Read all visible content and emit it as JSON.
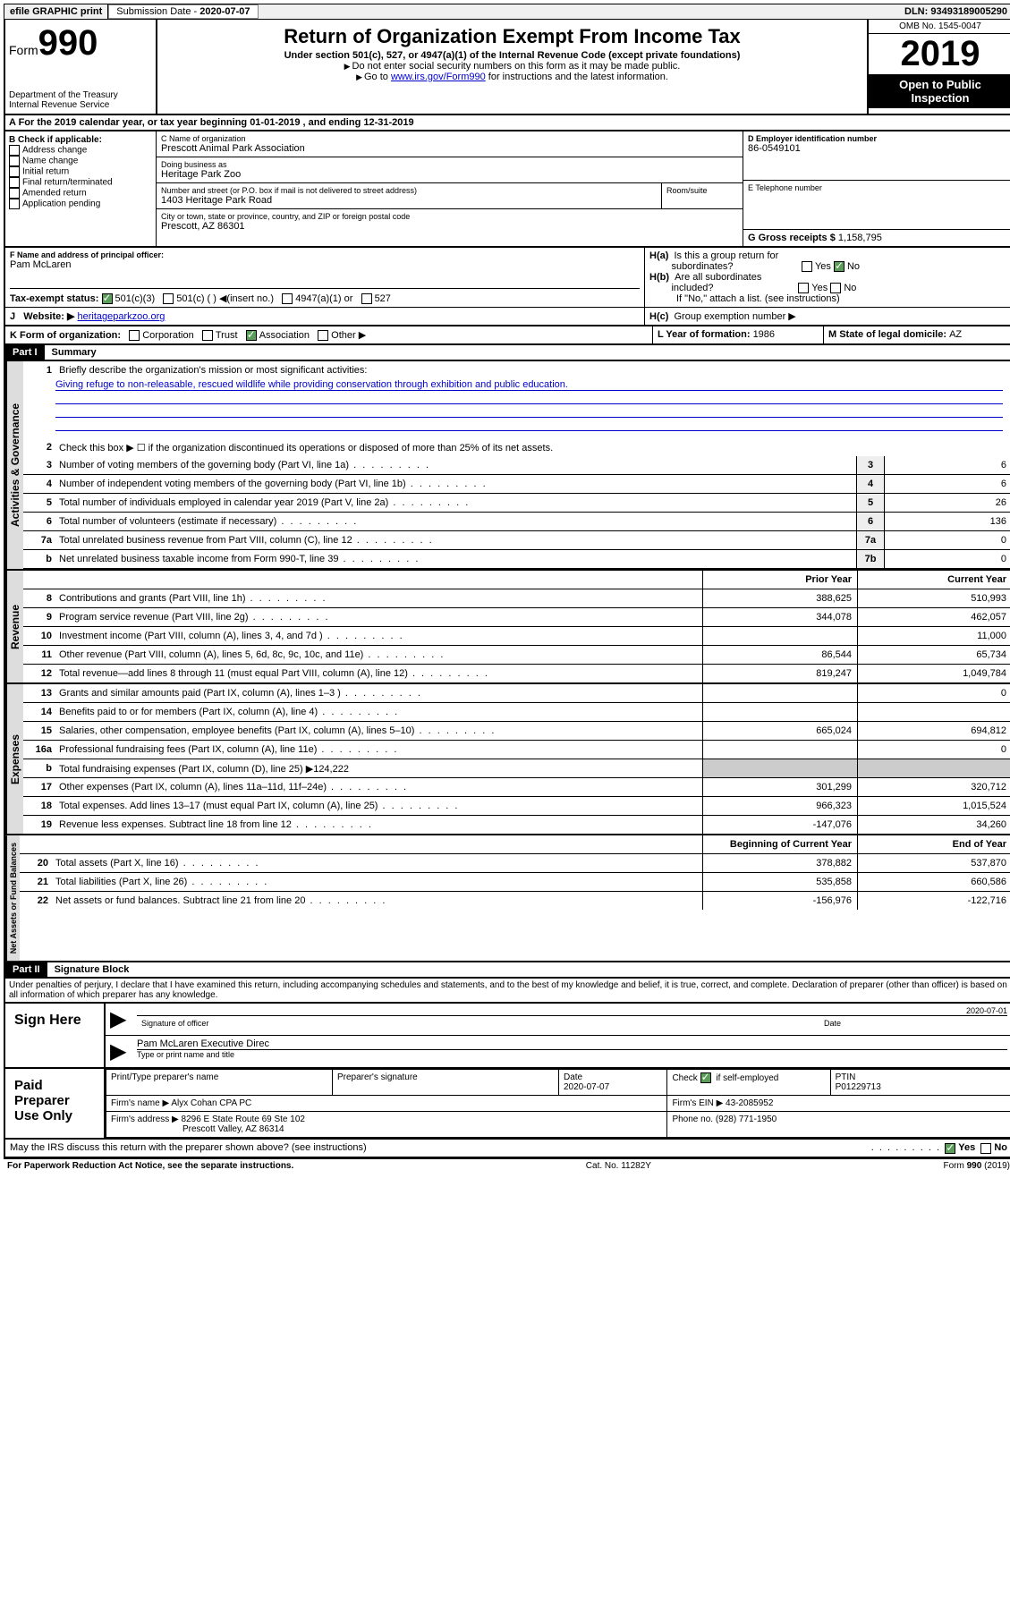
{
  "topbar": {
    "efile": "efile GRAPHIC print",
    "submission_label": "Submission Date - ",
    "submission_date": "2020-07-07",
    "dln_label": "DLN: ",
    "dln": "93493189005290"
  },
  "header": {
    "form_prefix": "Form",
    "form_num": "990",
    "dept": "Department of the Treasury\nInternal Revenue Service",
    "title": "Return of Organization Exempt From Income Tax",
    "subtitle": "Under section 501(c), 527, or 4947(a)(1) of the Internal Revenue Code (except private foundations)",
    "note1": "Do not enter social security numbers on this form as it may be made public.",
    "note2_pre": "Go to ",
    "note2_link": "www.irs.gov/Form990",
    "note2_post": " for instructions and the latest information.",
    "omb": "OMB No. 1545-0047",
    "year": "2019",
    "open": "Open to Public Inspection"
  },
  "section_a": "A   For the 2019 calendar year, or tax year beginning 01-01-2019    , and ending 12-31-2019",
  "b": {
    "label": "B Check if applicable:",
    "items": [
      "Address change",
      "Name change",
      "Initial return",
      "Final return/terminated",
      "Amended return",
      "Application pending"
    ]
  },
  "c": {
    "name_label": "C Name of organization",
    "name": "Prescott Animal Park Association",
    "dba_label": "Doing business as",
    "dba": "Heritage Park Zoo",
    "addr_label": "Number and street (or P.O. box if mail is not delivered to street address)",
    "room_label": "Room/suite",
    "addr": "1403 Heritage Park Road",
    "city_label": "City or town, state or province, country, and ZIP or foreign postal code",
    "city": "Prescott, AZ  86301"
  },
  "d": {
    "label": "D Employer identification number",
    "value": "86-0549101"
  },
  "e": {
    "label": "E Telephone number",
    "value": ""
  },
  "g": {
    "label": "G Gross receipts $ ",
    "value": "1,158,795"
  },
  "f": {
    "label": "F  Name and address of principal officer:",
    "value": "Pam McLaren"
  },
  "h": {
    "a_label": "H(a)  Is this a group return for subordinates?",
    "b_label": "H(b)  Are all subordinates included?",
    "b_note": "If \"No,\" attach a list. (see instructions)",
    "c_label": "H(c)  Group exemption number ▶",
    "yes": "Yes",
    "no": "No"
  },
  "i": {
    "label": "Tax-exempt status:",
    "opts": [
      "501(c)(3)",
      "501(c) (   ) ◀(insert no.)",
      "4947(a)(1) or",
      "527"
    ]
  },
  "j": {
    "label": "Website: ▶",
    "value": "heritageparkzoo.org"
  },
  "k": {
    "label": "K Form of organization:",
    "opts": [
      "Corporation",
      "Trust",
      "Association",
      "Other ▶"
    ]
  },
  "l": {
    "label": "L Year of formation: ",
    "value": "1986"
  },
  "m": {
    "label": "M State of legal domicile: ",
    "value": "AZ"
  },
  "part1": {
    "header": "Part I",
    "title": "Summary",
    "tab_gov": "Activities & Governance",
    "tab_rev": "Revenue",
    "tab_exp": "Expenses",
    "tab_net": "Net Assets or Fund Balances",
    "line1_label": "Briefly describe the organization's mission or most significant activities:",
    "line1_text": "Giving refuge to non-releasable, rescued wildlife while providing conservation through exhibition and public education.",
    "line2": "Check this box ▶ ☐  if the organization discontinued its operations or disposed of more than 25% of its net assets.",
    "lines_gov": [
      {
        "n": "3",
        "t": "Number of voting members of the governing body (Part VI, line 1a)",
        "box": "3",
        "v": "6"
      },
      {
        "n": "4",
        "t": "Number of independent voting members of the governing body (Part VI, line 1b)",
        "box": "4",
        "v": "6"
      },
      {
        "n": "5",
        "t": "Total number of individuals employed in calendar year 2019 (Part V, line 2a)",
        "box": "5",
        "v": "26"
      },
      {
        "n": "6",
        "t": "Total number of volunteers (estimate if necessary)",
        "box": "6",
        "v": "136"
      },
      {
        "n": "7a",
        "t": "Total unrelated business revenue from Part VIII, column (C), line 12",
        "box": "7a",
        "v": "0"
      },
      {
        "n": "b",
        "t": "Net unrelated business taxable income from Form 990-T, line 39",
        "box": "7b",
        "v": "0"
      }
    ],
    "col_prior": "Prior Year",
    "col_current": "Current Year",
    "lines_rev": [
      {
        "n": "8",
        "t": "Contributions and grants (Part VIII, line 1h)",
        "p": "388,625",
        "c": "510,993"
      },
      {
        "n": "9",
        "t": "Program service revenue (Part VIII, line 2g)",
        "p": "344,078",
        "c": "462,057"
      },
      {
        "n": "10",
        "t": "Investment income (Part VIII, column (A), lines 3, 4, and 7d )",
        "p": "",
        "c": "11,000"
      },
      {
        "n": "11",
        "t": "Other revenue (Part VIII, column (A), lines 5, 6d, 8c, 9c, 10c, and 11e)",
        "p": "86,544",
        "c": "65,734"
      },
      {
        "n": "12",
        "t": "Total revenue—add lines 8 through 11 (must equal Part VIII, column (A), line 12)",
        "p": "819,247",
        "c": "1,049,784"
      }
    ],
    "lines_exp": [
      {
        "n": "13",
        "t": "Grants and similar amounts paid (Part IX, column (A), lines 1–3 )",
        "p": "",
        "c": "0"
      },
      {
        "n": "14",
        "t": "Benefits paid to or for members (Part IX, column (A), line 4)",
        "p": "",
        "c": ""
      },
      {
        "n": "15",
        "t": "Salaries, other compensation, employee benefits (Part IX, column (A), lines 5–10)",
        "p": "665,024",
        "c": "694,812"
      },
      {
        "n": "16a",
        "t": "Professional fundraising fees (Part IX, column (A), line 11e)",
        "p": "",
        "c": "0"
      },
      {
        "n": "b",
        "t": "Total fundraising expenses (Part IX, column (D), line 25) ▶124,222",
        "p": null,
        "c": null
      },
      {
        "n": "17",
        "t": "Other expenses (Part IX, column (A), lines 11a–11d, 11f–24e)",
        "p": "301,299",
        "c": "320,712"
      },
      {
        "n": "18",
        "t": "Total expenses. Add lines 13–17 (must equal Part IX, column (A), line 25)",
        "p": "966,323",
        "c": "1,015,524"
      },
      {
        "n": "19",
        "t": "Revenue less expenses. Subtract line 18 from line 12",
        "p": "-147,076",
        "c": "34,260"
      }
    ],
    "col_begin": "Beginning of Current Year",
    "col_end": "End of Year",
    "lines_net": [
      {
        "n": "20",
        "t": "Total assets (Part X, line 16)",
        "p": "378,882",
        "c": "537,870"
      },
      {
        "n": "21",
        "t": "Total liabilities (Part X, line 26)",
        "p": "535,858",
        "c": "660,586"
      },
      {
        "n": "22",
        "t": "Net assets or fund balances. Subtract line 21 from line 20",
        "p": "-156,976",
        "c": "-122,716"
      }
    ]
  },
  "part2": {
    "header": "Part II",
    "title": "Signature Block",
    "perjury": "Under penalties of perjury, I declare that I have examined this return, including accompanying schedules and statements, and to the best of my knowledge and belief, it is true, correct, and complete. Declaration of preparer (other than officer) is based on all information of which preparer has any knowledge.",
    "sign_here": "Sign Here",
    "sig_officer": "Signature of officer",
    "sig_date": "2020-07-01",
    "date_label": "Date",
    "officer_name": "Pam McLaren  Executive Direc",
    "type_name": "Type or print name and title",
    "paid": "Paid Preparer Use Only",
    "prep_name_label": "Print/Type preparer's name",
    "prep_sig_label": "Preparer's signature",
    "prep_date": "2020-07-07",
    "check_self": "Check ☑ if self-employed",
    "ptin_label": "PTIN",
    "ptin": "P01229713",
    "firm_name_label": "Firm's name   ▶ ",
    "firm_name": "Alyx Cohan CPA PC",
    "firm_ein_label": "Firm's EIN ▶ ",
    "firm_ein": "43-2085952",
    "firm_addr_label": "Firm's address ▶ ",
    "firm_addr": "8296 E State Route 69 Ste 102",
    "firm_city": "Prescott Valley, AZ  86314",
    "phone_label": "Phone no. ",
    "phone": "(928) 771-1950",
    "discuss": "May the IRS discuss this return with the preparer shown above? (see instructions)",
    "paperwork": "For Paperwork Reduction Act Notice, see the separate instructions.",
    "cat": "Cat. No. 11282Y",
    "form_footer": "Form 990 (2019)"
  }
}
